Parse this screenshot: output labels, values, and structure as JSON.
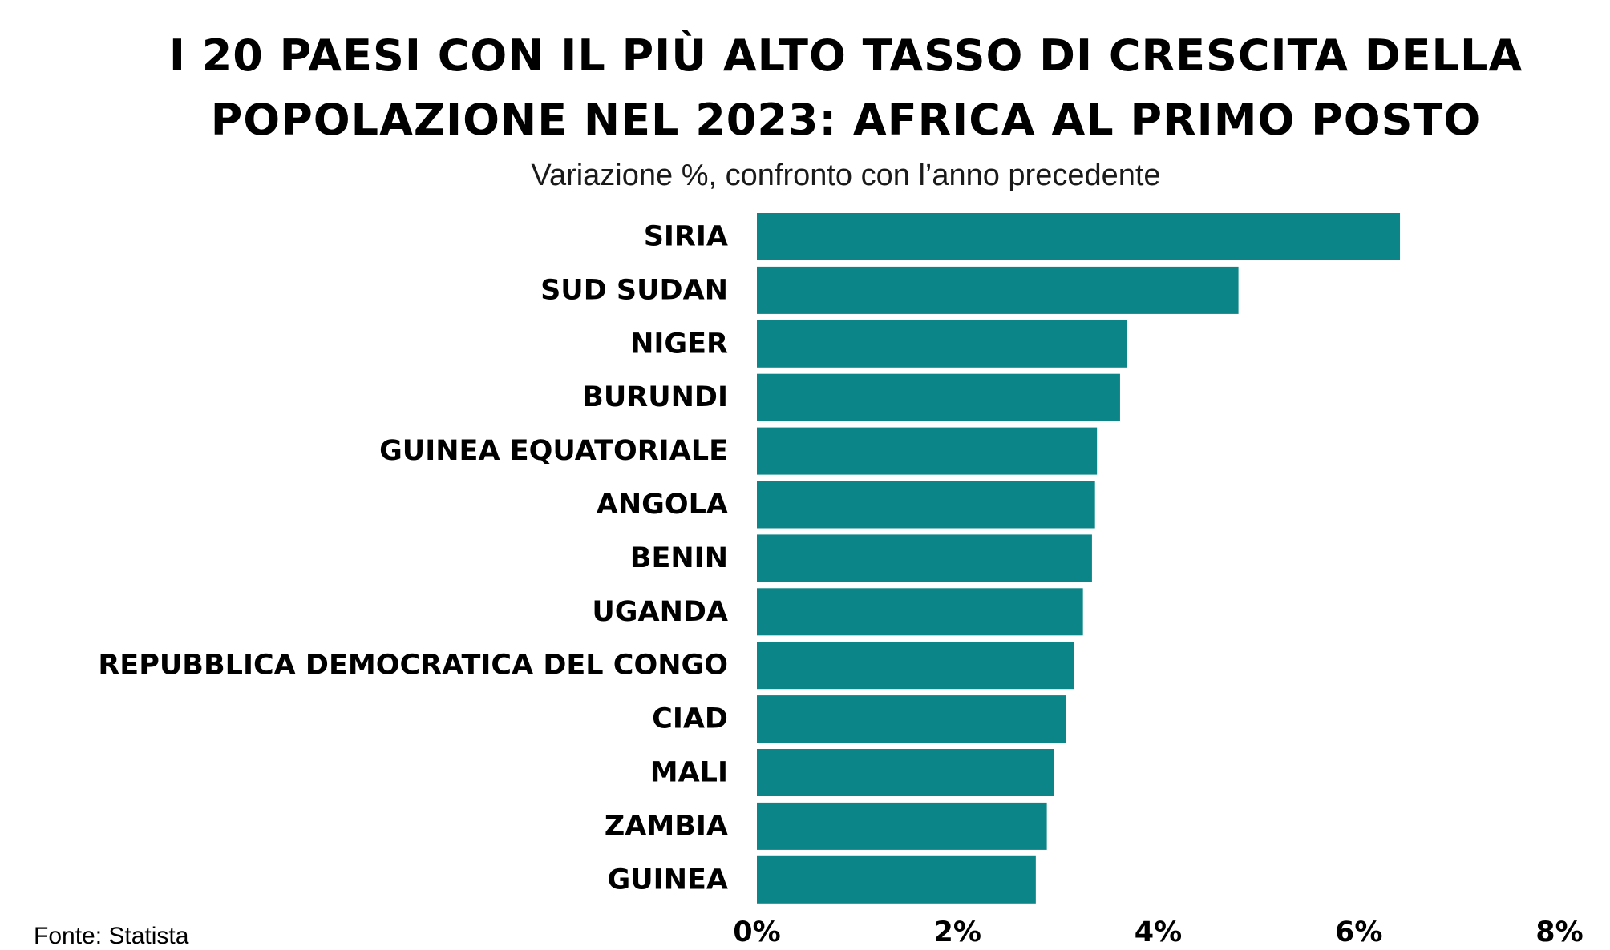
{
  "title": "I 20 paesi con il più alto tasso di crescita della popolazione nel 2023: Africa al primo posto",
  "subtitle": "Variazione %, confronto con l’anno precedente",
  "source": "Fonte: Statista",
  "colors": {
    "bar": "#0b8587"
  },
  "chart_data": {
    "type": "bar",
    "orientation": "horizontal",
    "title": "I 20 paesi con il più alto tasso di crescita della popolazione nel 2023: Africa al primo posto",
    "subtitle": "Variazione %, confronto con l’anno precedente",
    "categories": [
      "SIRIA",
      "SUD SUDAN",
      "NIGER",
      "BURUNDI",
      "GUINEA EQUATORIALE",
      "ANGOLA",
      "BENIN",
      "UGANDA",
      "REPUBBLICA DEMOCRATICA DEL CONGO",
      "CIAD",
      "MALI",
      "ZAMBIA",
      "GUINEA"
    ],
    "values": [
      6.41,
      4.8,
      3.69,
      3.62,
      3.39,
      3.37,
      3.34,
      3.25,
      3.16,
      3.08,
      2.96,
      2.89,
      2.78
    ],
    "xlim": [
      0,
      8
    ],
    "ticks": [
      0,
      2,
      4,
      6,
      8
    ],
    "tick_labels": [
      "0%",
      "2%",
      "4%",
      "6%",
      "8%"
    ],
    "grid": false,
    "legend": "none"
  }
}
